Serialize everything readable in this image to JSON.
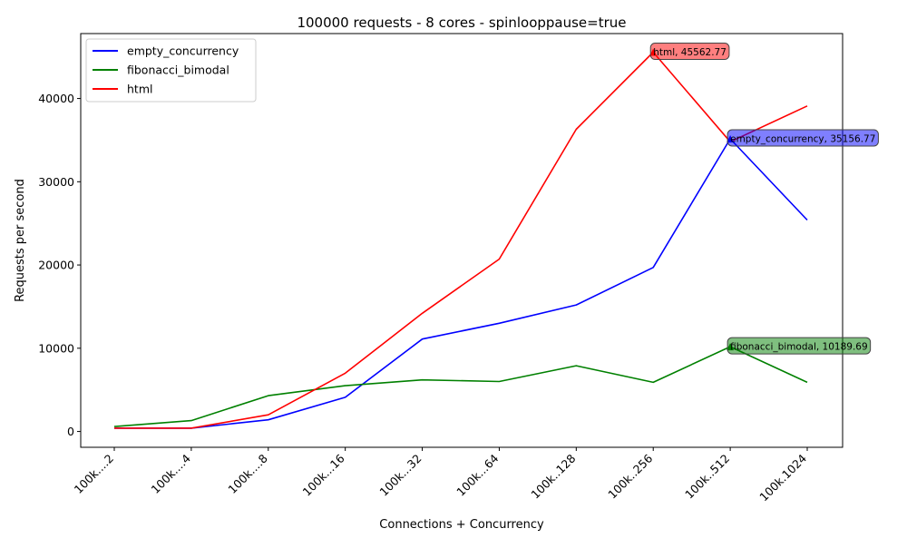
{
  "chart_data": {
    "type": "line",
    "title": "100000 requests - 8 cores - spinlooppause=true",
    "xlabel": "Connections + Concurrency",
    "ylabel": "Requests per second",
    "categories": [
      "100k....2",
      "100k....4",
      "100k....8",
      "100k...16",
      "100k...32",
      "100k...64",
      "100k..128",
      "100k..256",
      "100k..512",
      "100k.1024"
    ],
    "ylim": [
      -1900,
      47800
    ],
    "yticks": [
      0,
      10000,
      20000,
      30000,
      40000
    ],
    "grid": false,
    "legend_position": "top-left",
    "series": [
      {
        "name": "empty_concurrency",
        "color": "#0000ff",
        "values": [
          400,
          400,
          1400,
          4100,
          11100,
          13000,
          15200,
          19700,
          35156.77,
          25400
        ]
      },
      {
        "name": "fibonacci_bimodal",
        "color": "#008000",
        "values": [
          600,
          1300,
          4300,
          5500,
          6200,
          6000,
          7900,
          5900,
          10189.69,
          5900
        ]
      },
      {
        "name": "html",
        "color": "#ff0000",
        "values": [
          400,
          400,
          2000,
          7000,
          14200,
          20700,
          36300,
          45562.77,
          34800,
          39100
        ]
      }
    ],
    "annotations": [
      {
        "series": "html",
        "category_index": 7,
        "value": 45562.77,
        "text": "html, 45562.77",
        "color": "#ff0000"
      },
      {
        "series": "empty_concurrency",
        "category_index": 8,
        "value": 35156.77,
        "text": "empty_concurrency, 35156.77",
        "color": "#0000ff"
      },
      {
        "series": "fibonacci_bimodal",
        "category_index": 8,
        "value": 10189.69,
        "text": "fibonacci_bimodal, 10189.69",
        "color": "#008000"
      }
    ]
  }
}
